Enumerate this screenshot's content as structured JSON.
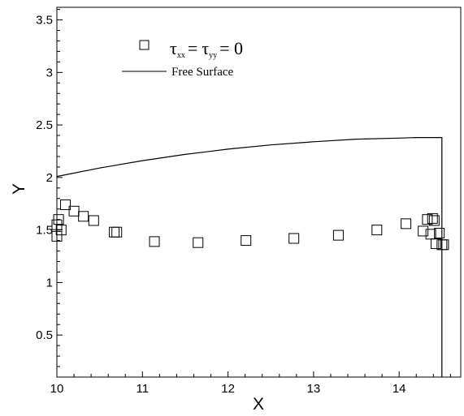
{
  "chart_data": {
    "type": "scatter",
    "xlabel": "X",
    "ylabel": "Y",
    "xlim": [
      10,
      14.72
    ],
    "ylim": [
      0.1,
      3.62
    ],
    "x_ticks": [
      10,
      11,
      12,
      13,
      14
    ],
    "y_ticks": [
      0.5,
      1,
      1.5,
      2,
      2.5,
      3,
      3.5
    ],
    "x_tick_labels": [
      "10",
      "11",
      "12",
      "13",
      "14"
    ],
    "y_tick_labels": [
      "0.5",
      "1",
      "1.5",
      "2",
      "2.5",
      "3",
      "3.5"
    ],
    "grid": false,
    "legend_position": "top-center",
    "series": [
      {
        "name": "τxx = τyy = 0",
        "legend_symbol": "τ",
        "legend_sub1": "xx",
        "legend_eq1": "=",
        "legend_sub2": "yy",
        "legend_eq2": "= 0",
        "marker": "square-open",
        "points": [
          [
            10.0,
            1.44
          ],
          [
            10.0,
            1.55
          ],
          [
            10.02,
            1.6
          ],
          [
            10.05,
            1.5
          ],
          [
            10.1,
            1.74
          ],
          [
            10.2,
            1.68
          ],
          [
            10.31,
            1.63
          ],
          [
            10.43,
            1.59
          ],
          [
            10.67,
            1.48
          ],
          [
            10.7,
            1.48
          ],
          [
            11.14,
            1.39
          ],
          [
            11.65,
            1.38
          ],
          [
            12.21,
            1.4
          ],
          [
            12.77,
            1.42
          ],
          [
            13.29,
            1.45
          ],
          [
            13.74,
            1.5
          ],
          [
            14.08,
            1.56
          ],
          [
            14.28,
            1.49
          ],
          [
            14.33,
            1.6
          ],
          [
            14.37,
            1.46
          ],
          [
            14.39,
            1.61
          ],
          [
            14.41,
            1.59
          ],
          [
            14.43,
            1.37
          ],
          [
            14.47,
            1.47
          ],
          [
            14.5,
            1.36
          ],
          [
            14.52,
            1.36
          ]
        ]
      },
      {
        "name": "Free Surface",
        "style": "line",
        "x": [
          10.0,
          10.5,
          11.0,
          11.5,
          12.0,
          12.5,
          13.0,
          13.5,
          14.0,
          14.2,
          14.5,
          14.5
        ],
        "y": [
          2.01,
          2.09,
          2.16,
          2.22,
          2.27,
          2.31,
          2.34,
          2.365,
          2.375,
          2.38,
          2.38,
          0.1
        ]
      }
    ]
  }
}
